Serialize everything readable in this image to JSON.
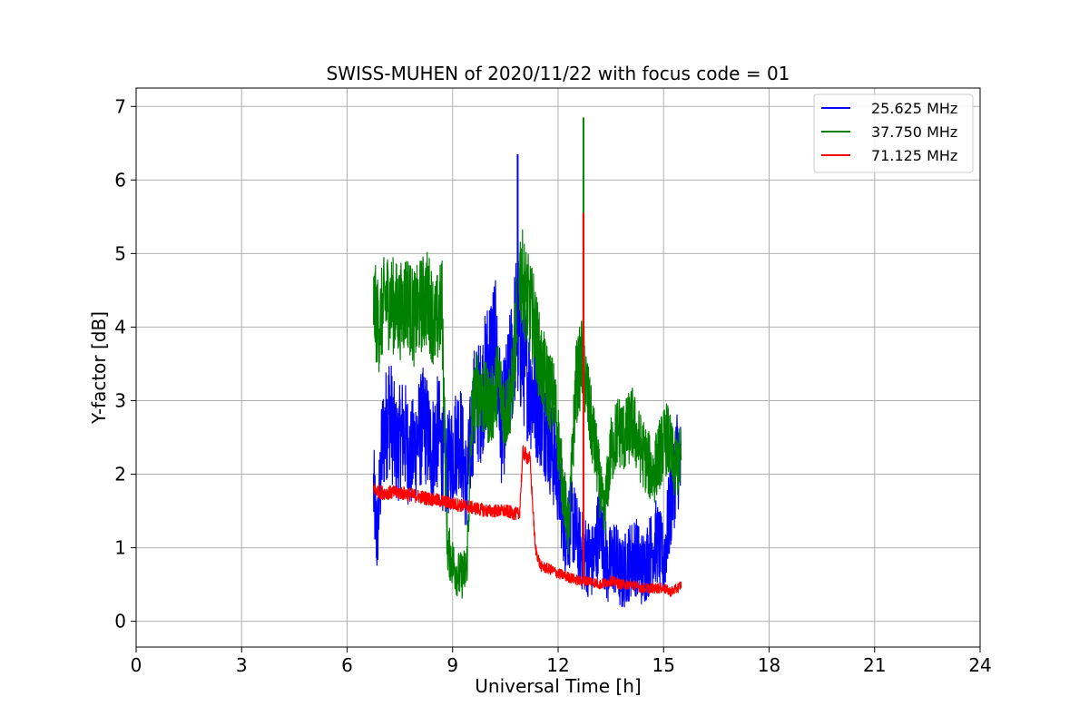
{
  "chart_data": {
    "type": "line",
    "title": "SWISS-MUHEN of 2020/11/22 with focus code = 01",
    "xlabel": "Universal Time [h]",
    "ylabel": "Y-factor [dB]",
    "xlim": [
      0,
      24
    ],
    "ylim": [
      -0.35,
      7.25
    ],
    "xticks": [
      0,
      3,
      6,
      9,
      12,
      15,
      18,
      21,
      24
    ],
    "yticks": [
      0,
      1,
      2,
      3,
      4,
      5,
      6,
      7
    ],
    "grid": true,
    "legend_position": "top-right",
    "series": [
      {
        "name": "25.625 MHz",
        "color": "#0000ff",
        "x": [
          6.75,
          6.85,
          7.0,
          7.2,
          7.4,
          7.6,
          7.8,
          8.0,
          8.2,
          8.4,
          8.6,
          8.8,
          9.0,
          9.2,
          9.4,
          9.6,
          9.8,
          10.0,
          10.2,
          10.4,
          10.6,
          10.8,
          11.0,
          11.2,
          11.4,
          11.6,
          11.8,
          12.0,
          12.2,
          12.4,
          12.6,
          12.8,
          13.0,
          13.2,
          13.4,
          13.6,
          13.8,
          14.0,
          14.2,
          14.4,
          14.6,
          14.8,
          15.0,
          15.2,
          15.4,
          15.5
        ],
        "y": [
          1.8,
          1.1,
          2.4,
          2.9,
          2.3,
          2.6,
          2.2,
          2.5,
          2.7,
          2.3,
          2.6,
          2.0,
          2.3,
          2.6,
          1.8,
          2.9,
          3.0,
          3.5,
          3.8,
          2.6,
          3.2,
          4.0,
          3.6,
          3.2,
          3.0,
          2.8,
          2.4,
          2.0,
          1.2,
          1.4,
          1.0,
          0.9,
          0.8,
          1.4,
          0.7,
          0.9,
          0.6,
          0.8,
          0.9,
          0.7,
          0.9,
          1.1,
          0.8,
          1.6,
          2.3,
          2.0
        ]
      },
      {
        "name": "37.750 MHz",
        "color": "#008000",
        "x": [
          6.75,
          6.9,
          7.1,
          7.3,
          7.5,
          7.7,
          7.9,
          8.1,
          8.3,
          8.5,
          8.7,
          8.85,
          9.0,
          9.2,
          9.4,
          9.55,
          9.7,
          9.9,
          10.1,
          10.3,
          10.5,
          10.7,
          10.9,
          11.1,
          11.3,
          11.5,
          11.7,
          11.9,
          12.1,
          12.3,
          12.5,
          12.7,
          12.9,
          13.1,
          13.3,
          13.5,
          13.7,
          13.9,
          14.1,
          14.3,
          14.5,
          14.7,
          14.9,
          15.1,
          15.3,
          15.5
        ],
        "y": [
          4.3,
          4.0,
          4.4,
          4.3,
          4.2,
          4.4,
          4.1,
          4.3,
          4.4,
          4.0,
          4.3,
          1.0,
          0.8,
          0.6,
          0.7,
          2.8,
          3.2,
          3.0,
          2.9,
          3.3,
          2.8,
          3.2,
          4.8,
          4.4,
          4.1,
          3.5,
          3.2,
          3.0,
          2.0,
          1.2,
          3.2,
          3.6,
          2.8,
          2.2,
          1.4,
          2.3,
          2.6,
          2.5,
          2.7,
          2.4,
          2.2,
          2.0,
          2.3,
          2.5,
          2.1,
          2.2
        ]
      },
      {
        "name": "71.125 MHz",
        "color": "#ff0000",
        "x": [
          6.75,
          7.0,
          7.5,
          8.0,
          8.5,
          9.0,
          9.5,
          10.0,
          10.5,
          10.9,
          11.0,
          11.2,
          11.35,
          11.5,
          11.8,
          12.0,
          12.3,
          12.6,
          12.9,
          13.2,
          13.5,
          13.8,
          14.1,
          14.4,
          14.7,
          15.0,
          15.2,
          15.4,
          15.5
        ],
        "y": [
          1.8,
          1.75,
          1.75,
          1.7,
          1.65,
          1.6,
          1.55,
          1.5,
          1.5,
          1.45,
          2.3,
          2.2,
          1.0,
          0.75,
          0.7,
          0.65,
          0.6,
          0.55,
          0.55,
          0.5,
          0.55,
          0.5,
          0.5,
          0.45,
          0.45,
          0.45,
          0.4,
          0.45,
          0.5
        ]
      }
    ],
    "spikes": [
      {
        "series": "37.750 MHz",
        "x": 12.72,
        "y": 6.85
      },
      {
        "series": "71.125 MHz",
        "x": 12.72,
        "y": 5.55
      },
      {
        "series": "25.625 MHz",
        "x": 10.85,
        "y": 6.35
      }
    ]
  }
}
